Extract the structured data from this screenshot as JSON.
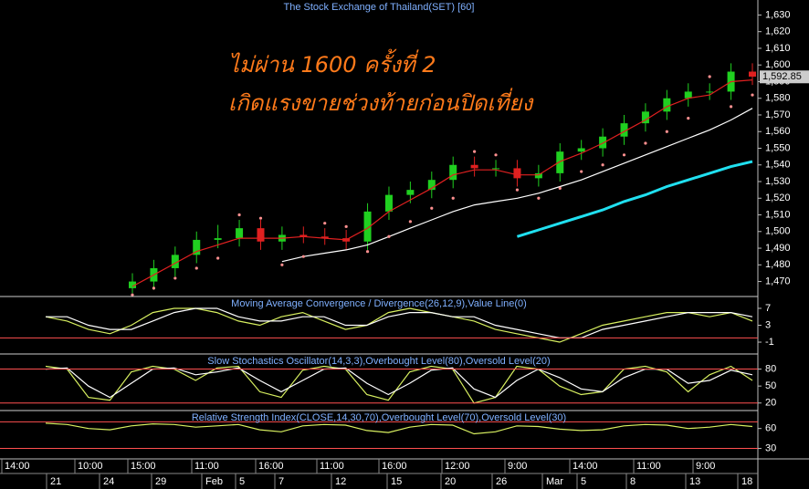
{
  "title": "The Stock Exchange of Thailand(SET) [60]",
  "annotations": [
    "ไม่ผ่าน 1600 ครั้งที่ 2",
    "เกิดแรงขายช่วงท้ายก่อนปิดเที่ยง"
  ],
  "time_labels": [
    "14:00",
    "10:00",
    "15:00",
    "11:00",
    "16:00",
    "11:00",
    "16:00",
    "12:00",
    "9:00",
    "14:00",
    "11:00",
    "9:00"
  ],
  "date_labels": [
    "21",
    "24",
    "29",
    "Feb",
    "5",
    "7",
    "12",
    "15",
    "20",
    "26",
    "Mar",
    "5",
    "8",
    "13",
    "18"
  ],
  "chart_data": [
    {
      "type": "candlestick",
      "up_color": "#20d020",
      "down_color": "#e02020",
      "open": [
        1466,
        1470,
        1478,
        1486,
        1495,
        1496,
        1502,
        1494,
        1498,
        1497,
        1496,
        1494,
        1512,
        1522,
        1525,
        1531,
        1540,
        1538,
        1538,
        1532,
        1535,
        1548,
        1550,
        1557,
        1565,
        1572,
        1580,
        1584,
        1584,
        1596
      ],
      "high": [
        1475,
        1483,
        1491,
        1500,
        1504,
        1507,
        1507,
        1503,
        1503,
        1502,
        1501,
        1517,
        1527,
        1530,
        1536,
        1545,
        1545,
        1543,
        1543,
        1540,
        1553,
        1555,
        1562,
        1570,
        1577,
        1585,
        1589,
        1589,
        1601,
        1601
      ],
      "low": [
        1463,
        1465,
        1473,
        1481,
        1490,
        1491,
        1489,
        1489,
        1493,
        1492,
        1489,
        1489,
        1507,
        1517,
        1520,
        1526,
        1533,
        1533,
        1527,
        1527,
        1530,
        1543,
        1545,
        1552,
        1560,
        1567,
        1575,
        1579,
        1579,
        1588
      ],
      "close": [
        1470,
        1478,
        1486,
        1495,
        1496,
        1502,
        1494,
        1498,
        1497,
        1496,
        1494,
        1512,
        1522,
        1525,
        1531,
        1540,
        1538,
        1538,
        1532,
        1535,
        1548,
        1550,
        1557,
        1565,
        1572,
        1580,
        1584,
        1584,
        1596,
        1593
      ],
      "series": [
        {
          "color": "#e02020",
          "values": [
            1467,
            1474,
            1481,
            1488,
            1492,
            1496,
            1496,
            1496,
            1497,
            1496,
            1495,
            1502,
            1512,
            1519,
            1526,
            1534,
            1537,
            1537,
            1534,
            1534,
            1542,
            1547,
            1553,
            1560,
            1567,
            1575,
            1580,
            1582,
            1590,
            1591
          ]
        },
        {
          "color": "#ffffff",
          "values": [
            null,
            null,
            null,
            null,
            null,
            null,
            null,
            1482,
            1485,
            1487,
            1489,
            1492,
            1497,
            1502,
            1507,
            1512,
            1516,
            1518,
            1520,
            1523,
            1527,
            1531,
            1536,
            1541,
            1546,
            1551,
            1556,
            1561,
            1567,
            1574
          ]
        },
        {
          "color": "#20e0f0",
          "width": 3,
          "values": [
            null,
            null,
            null,
            null,
            null,
            null,
            null,
            null,
            null,
            null,
            null,
            null,
            null,
            null,
            null,
            null,
            null,
            null,
            1497,
            1501,
            1505,
            1509,
            1513,
            1518,
            1522,
            1527,
            1531,
            1535,
            1539,
            1542
          ]
        },
        {
          "color": "#ff9090",
          "style": "dots",
          "values": [
            1462,
            1466,
            1472,
            1478,
            1484,
            1510,
            1508,
            1480,
            1485,
            1505,
            1503,
            1488,
            1497,
            1506,
            1514,
            1520,
            1548,
            1546,
            1525,
            1520,
            1526,
            1536,
            1540,
            1546,
            1553,
            1560,
            1568,
            1593,
            1575,
            1582
          ]
        }
      ],
      "ylim": [
        1461,
        1639
      ],
      "yticks": [
        {
          "value": 1470,
          "label": "1,470"
        },
        {
          "value": 1480,
          "label": "1,480"
        },
        {
          "value": 1490,
          "label": "1,490"
        },
        {
          "value": 1500,
          "label": "1,500"
        },
        {
          "value": 1510,
          "label": "1,510"
        },
        {
          "value": 1520,
          "label": "1,520"
        },
        {
          "value": 1530,
          "label": "1,530"
        },
        {
          "value": 1540,
          "label": "1,540"
        },
        {
          "value": 1550,
          "label": "1,550"
        },
        {
          "value": 1560,
          "label": "1,560"
        },
        {
          "value": 1570,
          "label": "1,570"
        },
        {
          "value": 1580,
          "label": "1,580"
        },
        {
          "value": 1590,
          "label": "1,590"
        },
        {
          "value": 1600,
          "label": "1,600"
        },
        {
          "value": 1610,
          "label": "1,610"
        },
        {
          "value": 1620,
          "label": "1,620"
        },
        {
          "value": 1630,
          "label": "1,630"
        }
      ],
      "last_price": {
        "value": 1592.85,
        "label": "1,592.85"
      }
    },
    {
      "type": "line",
      "title": "Moving Average Convergence / Divergence(26,12,9),Value Line(0)",
      "ylim": [
        -3.8,
        9.8
      ],
      "yticks": [
        -1,
        3,
        7
      ],
      "ref_lines": [
        0
      ],
      "series": [
        {
          "color": "#d8f060",
          "values": [
            5,
            4,
            2,
            1,
            3,
            6,
            7,
            7,
            6,
            4,
            3,
            5,
            6,
            4,
            2,
            3,
            6,
            7,
            6,
            5,
            4,
            2,
            1,
            0,
            -1,
            1,
            3,
            4,
            5,
            6,
            6,
            5,
            6,
            4
          ]
        },
        {
          "color": "#ffffff",
          "values": [
            5,
            5,
            3,
            2,
            2,
            4,
            6,
            7,
            7,
            5,
            4,
            4,
            5,
            5,
            3,
            3,
            5,
            6,
            6,
            5,
            5,
            3,
            2,
            1,
            0,
            0,
            2,
            3,
            4,
            5,
            6,
            6,
            6,
            5
          ]
        }
      ]
    },
    {
      "type": "line",
      "title": "Slow Stochastics Oscillator(14,3,3),Overbought Level(80),Oversold Level(20)",
      "ylim": [
        6.7,
        106.7
      ],
      "yticks": [
        20,
        50,
        80
      ],
      "ref_lines": [
        20,
        80
      ],
      "series": [
        {
          "color": "#d8f060",
          "values": [
            85,
            80,
            30,
            25,
            75,
            85,
            80,
            60,
            82,
            85,
            40,
            30,
            78,
            85,
            80,
            35,
            25,
            75,
            85,
            80,
            20,
            30,
            85,
            80,
            50,
            35,
            40,
            80,
            85,
            75,
            40,
            70,
            85,
            60
          ]
        },
        {
          "color": "#ffffff",
          "values": [
            80,
            82,
            50,
            30,
            55,
            80,
            82,
            70,
            75,
            82,
            60,
            40,
            60,
            80,
            82,
            55,
            35,
            55,
            78,
            82,
            45,
            30,
            60,
            80,
            65,
            45,
            40,
            65,
            80,
            80,
            55,
            60,
            78,
            70
          ]
        }
      ]
    },
    {
      "type": "line",
      "title": "Relative Strength Index(CLOSE,14,30,70),Overbought Level(70),Oversold Level(30)",
      "ylim": [
        14.3,
        87
      ],
      "yticks": [
        30,
        60
      ],
      "ref_lines": [
        30,
        70
      ],
      "series": [
        {
          "color": "#d8f060",
          "values": [
            68,
            66,
            60,
            58,
            64,
            67,
            66,
            62,
            64,
            66,
            58,
            55,
            64,
            66,
            65,
            57,
            54,
            62,
            66,
            65,
            52,
            55,
            64,
            63,
            59,
            57,
            58,
            64,
            66,
            65,
            60,
            62,
            66,
            63
          ]
        }
      ]
    }
  ]
}
